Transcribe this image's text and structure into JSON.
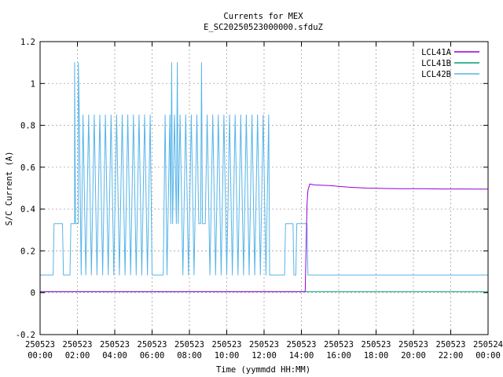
{
  "chart_data": {
    "type": "line",
    "title": "Currents for MEX",
    "subtitle": "E_SC20250523000000.sfduZ",
    "xlabel": "Time (yymmdd HH:MM)",
    "ylabel": "S/C Current (A)",
    "xlim": [
      0,
      24
    ],
    "ylim": [
      -0.2,
      1.2
    ],
    "grid": true,
    "legend_position": "top-right",
    "x_ticks": [
      {
        "value": 0,
        "date": "250523",
        "time": "00:00"
      },
      {
        "value": 2,
        "date": "250523",
        "time": "02:00"
      },
      {
        "value": 4,
        "date": "250523",
        "time": "04:00"
      },
      {
        "value": 6,
        "date": "250523",
        "time": "06:00"
      },
      {
        "value": 8,
        "date": "250523",
        "time": "08:00"
      },
      {
        "value": 10,
        "date": "250523",
        "time": "10:00"
      },
      {
        "value": 12,
        "date": "250523",
        "time": "12:00"
      },
      {
        "value": 14,
        "date": "250523",
        "time": "14:00"
      },
      {
        "value": 16,
        "date": "250523",
        "time": "16:00"
      },
      {
        "value": 18,
        "date": "250523",
        "time": "18:00"
      },
      {
        "value": 20,
        "date": "250523",
        "time": "20:00"
      },
      {
        "value": 22,
        "date": "250523",
        "time": "22:00"
      },
      {
        "value": 24,
        "date": "250524",
        "time": "00:00"
      }
    ],
    "y_ticks": [
      {
        "value": -0.2,
        "label": "-0.2"
      },
      {
        "value": 0,
        "label": "0"
      },
      {
        "value": 0.2,
        "label": "0.2"
      },
      {
        "value": 0.4,
        "label": "0.4"
      },
      {
        "value": 0.6,
        "label": "0.6"
      },
      {
        "value": 0.8,
        "label": "0.8"
      },
      {
        "value": 1,
        "label": "1"
      },
      {
        "value": 1.2,
        "label": "1.2"
      }
    ],
    "series": [
      {
        "name": "LCL41A",
        "color": "#9400d3",
        "points": [
          [
            0,
            0.005
          ],
          [
            1,
            0.005
          ],
          [
            2,
            0.005
          ],
          [
            4,
            0.005
          ],
          [
            6,
            0.005
          ],
          [
            8,
            0.005
          ],
          [
            10,
            0.005
          ],
          [
            12,
            0.005
          ],
          [
            13.5,
            0.005
          ],
          [
            14.2,
            0.005
          ],
          [
            14.25,
            0.2
          ],
          [
            14.3,
            0.42
          ],
          [
            14.35,
            0.49
          ],
          [
            14.45,
            0.52
          ],
          [
            14.7,
            0.515
          ],
          [
            15.5,
            0.512
          ],
          [
            16.5,
            0.505
          ],
          [
            17.5,
            0.5
          ],
          [
            18.5,
            0.498
          ],
          [
            19.5,
            0.497
          ],
          [
            20.5,
            0.497
          ],
          [
            21.5,
            0.496
          ],
          [
            22.5,
            0.496
          ],
          [
            23.5,
            0.495
          ],
          [
            24,
            0.495
          ]
        ]
      },
      {
        "name": "LCL41B",
        "color": "#009e73",
        "points": [
          [
            0,
            0.005
          ],
          [
            4,
            0.005
          ],
          [
            8,
            0.005
          ],
          [
            12,
            0.005
          ],
          [
            16,
            0.005
          ],
          [
            20,
            0.005
          ],
          [
            24,
            0.005
          ]
        ]
      },
      {
        "name": "LCL42B",
        "color": "#56b4e9",
        "points": [
          [
            0,
            0.085
          ],
          [
            0.7,
            0.085
          ],
          [
            0.75,
            0.33
          ],
          [
            1.2,
            0.33
          ],
          [
            1.25,
            0.085
          ],
          [
            1.6,
            0.085
          ],
          [
            1.65,
            0.33
          ],
          [
            1.85,
            0.33
          ],
          [
            1.85,
            1.1
          ],
          [
            1.9,
            0.33
          ],
          [
            2.05,
            0.33
          ],
          [
            2.05,
            1.1
          ],
          [
            2.1,
            0.85
          ],
          [
            2.2,
            0.085
          ],
          [
            2.3,
            0.85
          ],
          [
            2.45,
            0.085
          ],
          [
            2.6,
            0.85
          ],
          [
            2.75,
            0.085
          ],
          [
            2.9,
            0.85
          ],
          [
            3.05,
            0.085
          ],
          [
            3.2,
            0.85
          ],
          [
            3.35,
            0.085
          ],
          [
            3.5,
            0.85
          ],
          [
            3.65,
            0.085
          ],
          [
            3.8,
            0.85
          ],
          [
            3.95,
            0.085
          ],
          [
            4.1,
            0.85
          ],
          [
            4.25,
            0.085
          ],
          [
            4.4,
            0.85
          ],
          [
            4.55,
            0.085
          ],
          [
            4.7,
            0.85
          ],
          [
            4.85,
            0.085
          ],
          [
            5.0,
            0.85
          ],
          [
            5.15,
            0.085
          ],
          [
            5.3,
            0.85
          ],
          [
            5.45,
            0.085
          ],
          [
            5.6,
            0.85
          ],
          [
            5.75,
            0.085
          ],
          [
            5.9,
            0.85
          ],
          [
            6.0,
            0.085
          ],
          [
            6.6,
            0.085
          ],
          [
            6.7,
            0.85
          ],
          [
            6.8,
            0.085
          ],
          [
            6.95,
            0.85
          ],
          [
            7.0,
            0.33
          ],
          [
            7.05,
            1.1
          ],
          [
            7.1,
            0.33
          ],
          [
            7.2,
            0.85
          ],
          [
            7.3,
            0.33
          ],
          [
            7.35,
            1.1
          ],
          [
            7.4,
            0.33
          ],
          [
            7.5,
            0.85
          ],
          [
            7.65,
            0.085
          ],
          [
            7.8,
            0.85
          ],
          [
            7.95,
            0.085
          ],
          [
            8.1,
            0.85
          ],
          [
            8.25,
            0.085
          ],
          [
            8.4,
            0.85
          ],
          [
            8.5,
            0.33
          ],
          [
            8.6,
            0.33
          ],
          [
            8.65,
            1.1
          ],
          [
            8.7,
            0.33
          ],
          [
            8.85,
            0.33
          ],
          [
            8.95,
            0.85
          ],
          [
            9.1,
            0.085
          ],
          [
            9.25,
            0.85
          ],
          [
            9.4,
            0.085
          ],
          [
            9.55,
            0.85
          ],
          [
            9.7,
            0.085
          ],
          [
            9.85,
            0.85
          ],
          [
            10.0,
            0.085
          ],
          [
            10.15,
            0.85
          ],
          [
            10.3,
            0.085
          ],
          [
            10.45,
            0.85
          ],
          [
            10.6,
            0.085
          ],
          [
            10.75,
            0.85
          ],
          [
            10.9,
            0.085
          ],
          [
            11.05,
            0.85
          ],
          [
            11.2,
            0.085
          ],
          [
            11.35,
            0.85
          ],
          [
            11.5,
            0.085
          ],
          [
            11.65,
            0.85
          ],
          [
            11.8,
            0.085
          ],
          [
            11.95,
            0.85
          ],
          [
            12.1,
            0.085
          ],
          [
            12.25,
            0.85
          ],
          [
            12.3,
            0.085
          ],
          [
            13.1,
            0.085
          ],
          [
            13.15,
            0.33
          ],
          [
            13.55,
            0.33
          ],
          [
            13.6,
            0.085
          ],
          [
            13.7,
            0.085
          ],
          [
            13.75,
            0.33
          ],
          [
            14.3,
            0.33
          ],
          [
            14.35,
            0.085
          ],
          [
            16,
            0.085
          ],
          [
            18,
            0.085
          ],
          [
            20,
            0.085
          ],
          [
            22,
            0.085
          ],
          [
            24,
            0.085
          ]
        ]
      }
    ]
  }
}
